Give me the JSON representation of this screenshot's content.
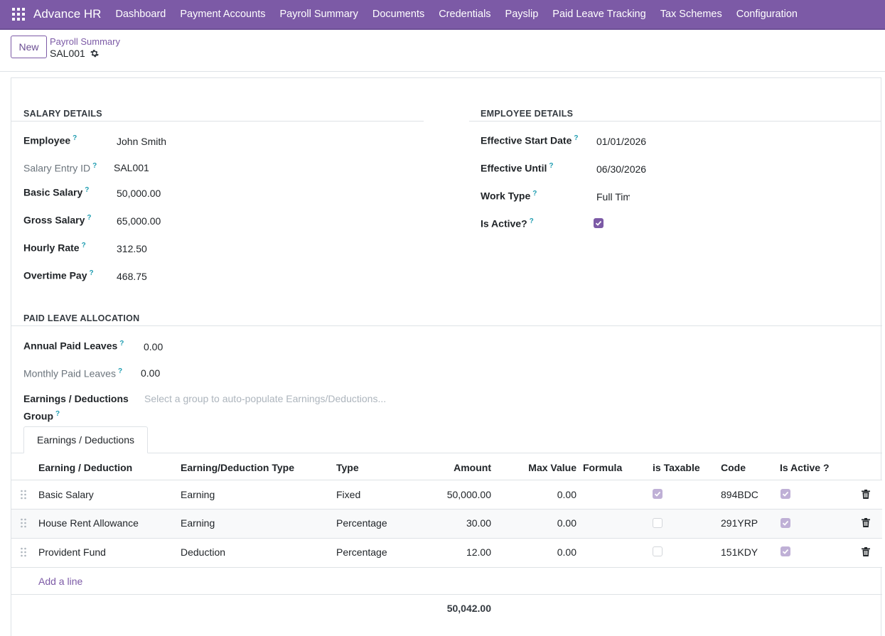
{
  "app": {
    "brand": "Advance HR",
    "nav": [
      "Dashboard",
      "Payment Accounts",
      "Payroll Summary",
      "Documents",
      "Credentials",
      "Payslip",
      "Paid Leave Tracking",
      "Tax Schemes",
      "Configuration"
    ]
  },
  "control": {
    "new_label": "New",
    "breadcrumb": "Payroll Summary",
    "record_name": "SAL001"
  },
  "salary_details": {
    "title": "SALARY DETAILS",
    "fields": [
      {
        "label": "Employee",
        "value": "John Smith",
        "muted": false
      },
      {
        "label": "Salary Entry ID",
        "value": "SAL001",
        "muted": true
      },
      {
        "label": "Basic Salary",
        "value": "50,000.00",
        "muted": false
      },
      {
        "label": "Gross Salary",
        "value": "65,000.00",
        "muted": false
      },
      {
        "label": "Hourly Rate",
        "value": "312.50",
        "muted": false
      },
      {
        "label": "Overtime Pay",
        "value": "468.75",
        "muted": false
      }
    ]
  },
  "employee_details": {
    "title": "EMPLOYEE DETAILS",
    "fields": [
      {
        "label": "Effective Start Date",
        "value": "01/01/2026"
      },
      {
        "label": "Effective Until",
        "value": "06/30/2026"
      },
      {
        "label": "Work Type",
        "value": "Full Time"
      },
      {
        "label": "Is Active?",
        "value": ""
      }
    ],
    "is_active": true
  },
  "paid_leave": {
    "title": "PAID LEAVE ALLOCATION",
    "fields": [
      {
        "label": "Annual Paid Leaves",
        "value": "0.00",
        "muted": false
      },
      {
        "label": "Monthly Paid Leaves",
        "value": "0.00",
        "muted": true
      }
    ],
    "group_label_1": "Earnings / Deductions",
    "group_label_2": "Group",
    "group_placeholder": "Select a group to auto-populate Earnings/Deductions..."
  },
  "tabs": [
    "Earnings / Deductions"
  ],
  "table": {
    "headers": [
      "Earning / Deduction",
      "Earning/Deduction Type",
      "Type",
      "Amount",
      "Max Value",
      "Formula",
      "is Taxable",
      "Code",
      "Is Active ?"
    ],
    "rows": [
      {
        "name": "Basic Salary",
        "ed_type": "Earning",
        "type": "Fixed",
        "amount": "50,000.00",
        "max_value": "0.00",
        "formula": "",
        "taxable": true,
        "code": "894BDC",
        "active": true
      },
      {
        "name": "House Rent Allowance",
        "ed_type": "Earning",
        "type": "Percentage",
        "amount": "30.00",
        "max_value": "0.00",
        "formula": "",
        "taxable": false,
        "code": "291YRP",
        "active": true
      },
      {
        "name": "Provident Fund",
        "ed_type": "Deduction",
        "type": "Percentage",
        "amount": "12.00",
        "max_value": "0.00",
        "formula": "",
        "taxable": false,
        "code": "151KDY",
        "active": true
      }
    ],
    "add_line": "Add a line",
    "total_amount": "50,042.00"
  },
  "colors": {
    "brand": "#7c5aa6",
    "help": "#1f9db1"
  }
}
